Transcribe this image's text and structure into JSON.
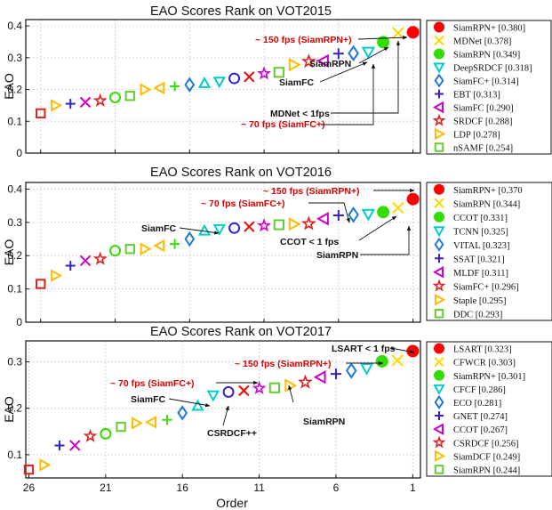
{
  "chart_data": [
    {
      "type": "scatter",
      "title": "EAO Scores Rank on VOT2015",
      "ylabel": "EAO",
      "xlabel": "",
      "ylim": [
        0,
        0.42
      ],
      "yticks": [
        0,
        0.1,
        0.2,
        0.3,
        0.4
      ],
      "xlim": [
        27,
        0.5
      ],
      "grid": true,
      "legend_position": "right",
      "x": [
        1,
        2,
        3,
        4,
        5,
        6,
        7,
        8,
        9,
        10,
        11,
        12,
        13,
        14,
        15,
        16,
        17,
        18,
        19,
        20,
        21,
        22,
        23,
        24,
        25,
        26
      ],
      "series": [
        {
          "name": "SiamRPN+ [0.380]",
          "rank": 1,
          "value": 0.38,
          "marker": "circle",
          "color": "#ff0000"
        },
        {
          "name": "MDNet [0.378]",
          "rank": 2,
          "value": 0.378,
          "marker": "x",
          "color": "#ffd700"
        },
        {
          "name": "SiamRPN [0.349]",
          "rank": 3,
          "value": 0.349,
          "marker": "circle",
          "color": "#33dd00"
        },
        {
          "name": "DeepSRDCF [0.318]",
          "rank": 4,
          "value": 0.318,
          "marker": "triangle-down",
          "color": "#00cccc"
        },
        {
          "name": "SiamFC+ [0.314]",
          "rank": 5,
          "value": 0.314,
          "marker": "diamond",
          "color": "#1f78d1"
        },
        {
          "name": "EBT [0.313]",
          "rank": 6,
          "value": 0.313,
          "marker": "plus",
          "color": "#3322cc"
        },
        {
          "name": "SiamFC [0.290]",
          "rank": 7,
          "value": 0.29,
          "marker": "triangle-left",
          "color": "#cc00cc"
        },
        {
          "name": "SRDCF [0.288]",
          "rank": 8,
          "value": 0.288,
          "marker": "star",
          "color": "#dd2222"
        },
        {
          "name": "LDP [0.278]",
          "rank": 9,
          "value": 0.278,
          "marker": "triangle-right",
          "color": "#ffbb00"
        },
        {
          "name": "nSAMF [0.254]",
          "rank": 10,
          "value": 0.254,
          "marker": "square",
          "color": "#66cc33"
        }
      ],
      "other_values": [
        0.25,
        0.24,
        0.235,
        0.225,
        0.22,
        0.215,
        0.21,
        0.205,
        0.2,
        0.18,
        0.175,
        0.165,
        0.16,
        0.155,
        0.15,
        0.125
      ],
      "annotations": [
        {
          "text": "~ 150 fps (SiamRPN+)",
          "color": "#dd0000"
        },
        {
          "text": "SiamRPN",
          "color": "#111111"
        },
        {
          "text": "SiamFC",
          "color": "#111111"
        },
        {
          "text": "~ 70 fps (SiamFC+)",
          "color": "#dd0000"
        },
        {
          "text": "MDNet < 1fps",
          "color": "#111111"
        }
      ]
    },
    {
      "type": "scatter",
      "title": "EAO Scores Rank on VOT2016",
      "ylabel": "EAO",
      "xlabel": "",
      "ylim": [
        0,
        0.42
      ],
      "yticks": [
        0,
        0.1,
        0.2,
        0.3,
        0.4
      ],
      "xlim": [
        27,
        0.5
      ],
      "grid": true,
      "legend_position": "right",
      "x": [
        1,
        2,
        3,
        4,
        5,
        6,
        7,
        8,
        9,
        10,
        11,
        12,
        13,
        14,
        15,
        16,
        17,
        18,
        19,
        20,
        21,
        22,
        23,
        24,
        25,
        26
      ],
      "series": [
        {
          "name": "SiamRPN+ [0.370",
          "rank": 1,
          "value": 0.37,
          "marker": "circle",
          "color": "#ff0000"
        },
        {
          "name": "SiamRPN [0.344]",
          "rank": 2,
          "value": 0.344,
          "marker": "x",
          "color": "#ffd700"
        },
        {
          "name": "CCOT [0.331]",
          "rank": 3,
          "value": 0.331,
          "marker": "circle",
          "color": "#33dd00"
        },
        {
          "name": "TCNN [0.325]",
          "rank": 4,
          "value": 0.325,
          "marker": "triangle-down",
          "color": "#00cccc"
        },
        {
          "name": "VITAL [0.323]",
          "rank": 5,
          "value": 0.323,
          "marker": "diamond",
          "color": "#1f78d1"
        },
        {
          "name": "SSAT [0.321]",
          "rank": 6,
          "value": 0.321,
          "marker": "plus",
          "color": "#3322cc"
        },
        {
          "name": "MLDF [0.311]",
          "rank": 7,
          "value": 0.311,
          "marker": "triangle-left",
          "color": "#cc00cc"
        },
        {
          "name": "SiamFC+ [0.296]",
          "rank": 8,
          "value": 0.296,
          "marker": "star",
          "color": "#dd2222"
        },
        {
          "name": "Staple [0.295]",
          "rank": 9,
          "value": 0.295,
          "marker": "triangle-right",
          "color": "#ffbb00"
        },
        {
          "name": "DDC [0.293]",
          "rank": 10,
          "value": 0.293,
          "marker": "square",
          "color": "#66cc33"
        }
      ],
      "other_values": [
        0.29,
        0.287,
        0.283,
        0.28,
        0.275,
        0.25,
        0.235,
        0.23,
        0.22,
        0.22,
        0.215,
        0.19,
        0.185,
        0.17,
        0.14,
        0.115
      ],
      "annotations": [
        {
          "text": "~ 150 fps (SiamRPN+)",
          "color": "#dd0000"
        },
        {
          "text": "~ 70 fps (SiamFC+)",
          "color": "#dd0000"
        },
        {
          "text": "SiamFC",
          "color": "#111111"
        },
        {
          "text": "CCOT < 1 fps",
          "color": "#111111"
        },
        {
          "text": "SiamRPN",
          "color": "#111111"
        }
      ]
    },
    {
      "type": "scatter",
      "title": "EAO Scores Rank on VOT2017",
      "ylabel": "EAO",
      "xlabel": "Order",
      "ylim": [
        0.05,
        0.345
      ],
      "yticks": [
        0.1,
        0.2,
        0.3
      ],
      "xlim": [
        26.2,
        0.5
      ],
      "xticks": [
        26,
        21,
        16,
        11,
        6,
        1
      ],
      "grid": true,
      "legend_position": "right",
      "x": [
        1,
        2,
        3,
        4,
        5,
        6,
        7,
        8,
        9,
        10,
        11,
        12,
        13,
        14,
        15,
        16,
        17,
        18,
        19,
        20,
        21,
        22,
        23,
        24,
        25,
        26
      ],
      "series": [
        {
          "name": "LSART [0.323]",
          "rank": 1,
          "value": 0.323,
          "marker": "circle",
          "color": "#ff0000"
        },
        {
          "name": "CFWCR [0.303]",
          "rank": 2,
          "value": 0.303,
          "marker": "x",
          "color": "#ffd700"
        },
        {
          "name": "SiamRPN+ [0.301]",
          "rank": 3,
          "value": 0.301,
          "marker": "circle",
          "color": "#33dd00"
        },
        {
          "name": "CFCF [0.286]",
          "rank": 4,
          "value": 0.286,
          "marker": "triangle-down",
          "color": "#00cccc"
        },
        {
          "name": "ECO [0.281]",
          "rank": 5,
          "value": 0.281,
          "marker": "diamond",
          "color": "#1f78d1"
        },
        {
          "name": "GNET [0.274]",
          "rank": 6,
          "value": 0.274,
          "marker": "plus",
          "color": "#3322cc"
        },
        {
          "name": "CCOT [0.267]",
          "rank": 7,
          "value": 0.267,
          "marker": "triangle-left",
          "color": "#cc00cc"
        },
        {
          "name": "CSRDCF [0.256]",
          "rank": 8,
          "value": 0.256,
          "marker": "star",
          "color": "#dd2222"
        },
        {
          "name": "SiamDCF [0.249]",
          "rank": 9,
          "value": 0.249,
          "marker": "triangle-right",
          "color": "#ffbb00"
        },
        {
          "name": "SiamRPN [0.244]",
          "rank": 10,
          "value": 0.244,
          "marker": "square",
          "color": "#66cc33"
        }
      ],
      "other_values": [
        0.243,
        0.238,
        0.235,
        0.228,
        0.205,
        0.19,
        0.175,
        0.17,
        0.168,
        0.16,
        0.145,
        0.14,
        0.12,
        0.12,
        0.078,
        0.068
      ],
      "annotations": [
        {
          "text": "LSART < 1 fps",
          "color": "#111111"
        },
        {
          "text": "~ 150 fps (SiamRPN+)",
          "color": "#dd0000"
        },
        {
          "text": "~ 70 fps (SiamFC+)",
          "color": "#dd0000"
        },
        {
          "text": "SiamFC",
          "color": "#111111"
        },
        {
          "text": "SiamRPN",
          "color": "#111111"
        },
        {
          "text": "CSRDCF++",
          "color": "#111111"
        }
      ]
    }
  ],
  "other_markers": [
    "star",
    "x",
    "circle",
    "triangle-down",
    "triangle-up",
    "diamond",
    "plus",
    "triangle-left",
    "triangle-right",
    "square",
    "circle",
    "star",
    "x",
    "plus",
    "triangle-right",
    "square"
  ],
  "other_colors": [
    "#cc00cc",
    "#ff0000",
    "#3322cc",
    "#00cccc",
    "#00cccc",
    "#1f78d1",
    "#33dd00",
    "#ffbb00",
    "#ffbb00",
    "#66cc33",
    "#33dd00",
    "#dd2222",
    "#cc00cc",
    "#3322cc",
    "#ffbb00",
    "#dd2222"
  ]
}
